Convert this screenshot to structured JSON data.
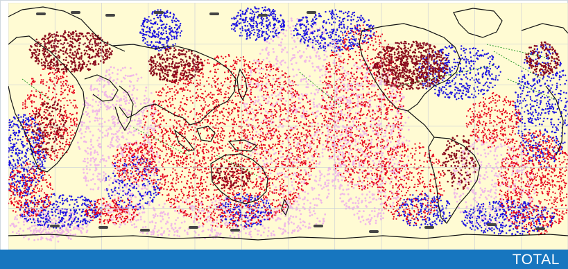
{
  "footer": {
    "label": "TOTAL"
  },
  "colors": {
    "ocean_background": "#fffbd3",
    "land": "#fff6c6",
    "graticule": "#c8ccd6",
    "footer_bar": "#1776bf",
    "footer_text": "#ffffff",
    "coastline": "#111111",
    "observation_red": "#e6001a",
    "observation_blue": "#1a10e0",
    "observation_pink": "#f0b8e8",
    "observation_dark_red": "#8a0a1c",
    "observation_green": "#2a9a2a",
    "sea_ice_marks": "#444444"
  },
  "map": {
    "projection": "equirectangular",
    "graticule": true
  }
}
